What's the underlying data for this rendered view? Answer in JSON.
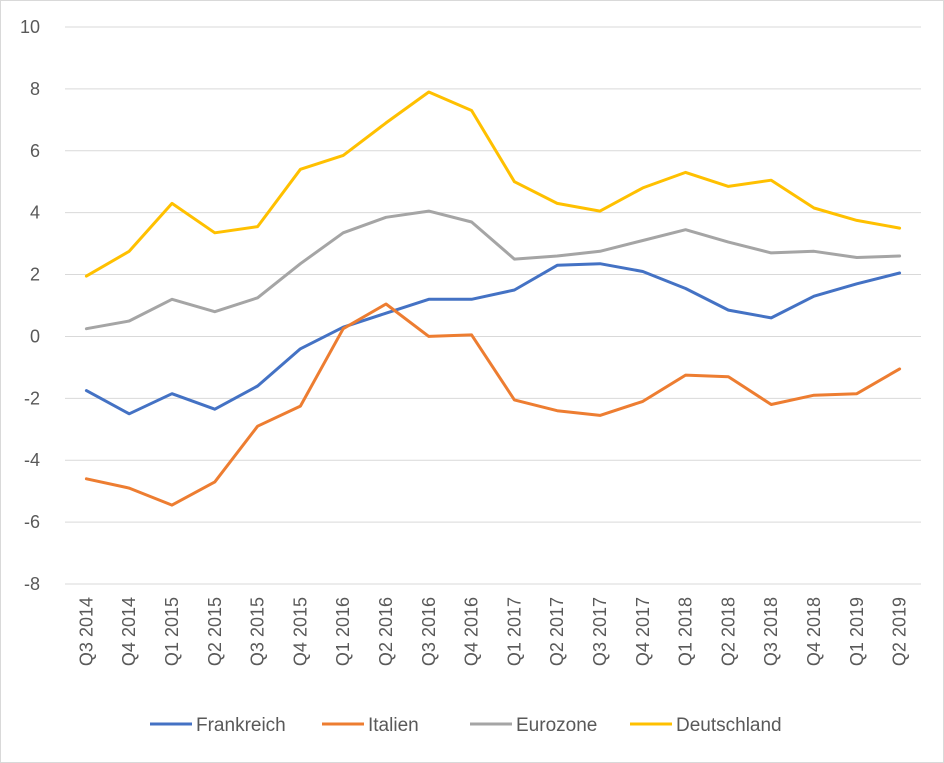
{
  "chart_data": {
    "type": "line",
    "title": "",
    "xlabel": "",
    "ylabel": "",
    "ylim": [
      -8,
      10
    ],
    "yticks": [
      "10",
      "8",
      "6",
      "4",
      "2",
      "0",
      "-2",
      "-4",
      "-6",
      "-8"
    ],
    "grid": true,
    "legend_position": "bottom",
    "categories": [
      "Q3 2014",
      "Q4 2014",
      "Q1 2015",
      "Q2 2015",
      "Q3 2015",
      "Q4 2015",
      "Q1 2016",
      "Q2 2016",
      "Q3 2016",
      "Q4 2016",
      "Q1 2017",
      "Q2 2017",
      "Q3 2017",
      "Q4 2017",
      "Q1 2018",
      "Q2 2018",
      "Q3 2018",
      "Q4 2018",
      "Q1 2019",
      "Q2 2019"
    ],
    "series": [
      {
        "name": "Frankreich",
        "color": "#4472c4",
        "values": [
          -1.75,
          -2.5,
          -1.85,
          -2.35,
          -1.6,
          -0.4,
          0.3,
          0.75,
          1.2,
          1.2,
          1.5,
          2.3,
          2.35,
          2.1,
          1.55,
          0.85,
          0.6,
          1.3,
          1.7,
          2.05
        ]
      },
      {
        "name": "Italien",
        "color": "#ed7d31",
        "values": [
          -4.6,
          -4.9,
          -5.45,
          -4.7,
          -2.9,
          -2.25,
          0.25,
          1.05,
          0.0,
          0.05,
          -2.05,
          -2.4,
          -2.55,
          -2.1,
          -1.25,
          -1.3,
          -2.2,
          -1.9,
          -1.85,
          -1.05
        ]
      },
      {
        "name": "Eurozone",
        "color": "#a5a5a5",
        "values": [
          0.25,
          0.5,
          1.2,
          0.8,
          1.25,
          2.35,
          3.35,
          3.85,
          4.05,
          3.7,
          2.5,
          2.6,
          2.75,
          3.1,
          3.45,
          3.05,
          2.7,
          2.75,
          2.55,
          2.6
        ]
      },
      {
        "name": "Deutschland",
        "color": "#ffc000",
        "values": [
          1.95,
          2.75,
          4.3,
          3.35,
          3.55,
          5.4,
          5.85,
          6.9,
          7.9,
          7.3,
          5.0,
          4.3,
          4.05,
          4.8,
          5.3,
          4.85,
          5.05,
          4.15,
          3.75,
          3.5
        ]
      }
    ]
  }
}
